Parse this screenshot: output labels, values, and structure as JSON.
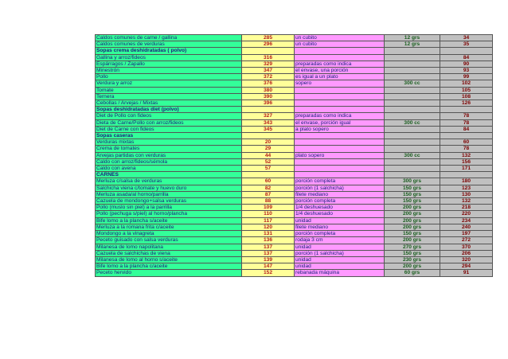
{
  "rows": [
    {
      "name": "Caldos comunes de carne / gallina",
      "code": "285",
      "portion": "un cubito",
      "amount": "12 grs",
      "value": "34"
    },
    {
      "name": "Caldos comunes de verduras",
      "code": "296",
      "portion": "un cubito",
      "amount": "12 grs",
      "value": "35"
    },
    {
      "section": true,
      "name": "Sopas crema deshidratadas ( polvo)"
    },
    {
      "name": "Gallina y arroz/fideos",
      "code": "316",
      "portion": "",
      "amount": "",
      "value": "84"
    },
    {
      "name": "Espárragos / Zapallo",
      "code": "329",
      "portion": "preparadas como indica",
      "amount": "",
      "value": "90"
    },
    {
      "name": "Minestrón",
      "code": "347",
      "portion": "el envase, una porción",
      "amount": "",
      "value": "93"
    },
    {
      "name": "Pollo",
      "code": "372",
      "portion": "es igual a un plato",
      "amount": "",
      "value": "99"
    },
    {
      "name": "Verdura y arroz",
      "code": "376",
      "portion": "sopero",
      "amount": "300 cc",
      "value": "102"
    },
    {
      "name": "Tomate",
      "code": "380",
      "portion": "",
      "amount": "",
      "value": "105"
    },
    {
      "name": "Ternera",
      "code": "390",
      "portion": "",
      "amount": "",
      "value": "108"
    },
    {
      "name": "Cebollas / Arvejas / Mixtas",
      "code": "396",
      "portion": "",
      "amount": "",
      "value": "126"
    },
    {
      "section": true,
      "name": "Sopas deshidratadas diet (polvo)"
    },
    {
      "name": "Diet de Pollo con fideos",
      "code": "327",
      "portion": "preparadas como indica",
      "amount": "",
      "value": "78"
    },
    {
      "name": "Dieta de Carne/Pollo con arroz/fideos",
      "code": "343",
      "portion": "el envase, porción igual",
      "amount": "300 cc",
      "value": "78"
    },
    {
      "name": "Diet de Carne con fideos",
      "code": "345",
      "portion": "a plato sopero",
      "amount": "",
      "value": "84"
    },
    {
      "section": true,
      "name": "Sopas caseras"
    },
    {
      "name": "Verduras mixtas",
      "code": "20",
      "portion": "",
      "amount": "",
      "value": "60"
    },
    {
      "name": "Crema de tomates",
      "code": "29",
      "portion": "",
      "amount": "",
      "value": "78"
    },
    {
      "name": "Arvejas partidas con verduras",
      "code": "44",
      "portion": "plato sopero",
      "amount": "300 cc",
      "value": "132"
    },
    {
      "name": "Caldo con arroz/fideos/sémola",
      "code": "52",
      "portion": "",
      "amount": "",
      "value": "156"
    },
    {
      "name": "Caldo con avena",
      "code": "57",
      "portion": "",
      "amount": "",
      "value": "171"
    },
    {
      "section": true,
      "name": "CARNES"
    },
    {
      "name": "Merluza c/salsa de verduras",
      "code": "60",
      "portion": "porción completa",
      "amount": "300 grs",
      "value": "180"
    },
    {
      "name": "Salchicha viena c/tomate y huevo duro",
      "code": "82",
      "portion": "porción (1 salchicha)",
      "amount": "150 grs",
      "value": "123"
    },
    {
      "name": "Merluza asada/al horno/parrilla",
      "code": "87",
      "portion": "filete mediano",
      "amount": "150 grs",
      "value": "130"
    },
    {
      "name": "Cazuela de mondongo+salsa verduras",
      "code": "88",
      "portion": "porción completa",
      "amount": "150 grs",
      "value": "132"
    },
    {
      "name": "Pollo (muslo sin piel) a la parrilla",
      "code": "109",
      "portion": "1/4 deshuesado",
      "amount": "200 grs",
      "value": "218"
    },
    {
      "name": "Pollo (pechuga s/piel) al horno/plancha",
      "code": "110",
      "portion": "1/4 deshuesado",
      "amount": "200 grs",
      "value": "220"
    },
    {
      "name": "Bife lomo a la plancha s/aceite",
      "code": "117",
      "portion": "unidad",
      "amount": "200 grs",
      "value": "234"
    },
    {
      "name": "Merluza a la romana frita c/aceite",
      "code": "120",
      "portion": "filete mediano",
      "amount": "200 grs",
      "value": "240"
    },
    {
      "name": "Mondongo a la vinagreta",
      "code": "131",
      "portion": "porción completa",
      "amount": "150 grs",
      "value": "197"
    },
    {
      "name": "Peceto guisado con salsa verduras",
      "code": "136",
      "portion": "rodaja 3 cm",
      "amount": "200 grs",
      "value": "272"
    },
    {
      "name": "Milanesa de lomo napolitana",
      "code": "137",
      "portion": "unidad",
      "amount": "270 grs",
      "value": "370"
    },
    {
      "name": "Cazuela de salchichas de viena",
      "code": "137",
      "portion": "porción (1 salchicha)",
      "amount": "150 grs",
      "value": "206"
    },
    {
      "name": "Milanesa de lomo al horno s/aceite",
      "code": "139",
      "portion": "unidad",
      "amount": "230 grs",
      "value": "320"
    },
    {
      "name": "Bife lomo a la plancha c/aceite",
      "code": "147",
      "portion": "unidad",
      "amount": "200 grs",
      "value": "294"
    },
    {
      "name": "Peceto hervido",
      "code": "152",
      "portion": "rebanada máquina",
      "amount": "60 grs",
      "value": "91"
    }
  ]
}
